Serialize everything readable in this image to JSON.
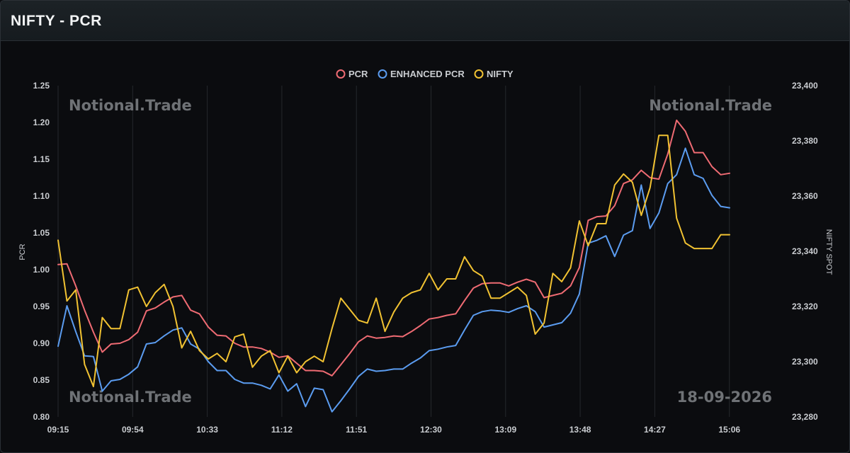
{
  "header": {
    "title": "NIFTY - PCR"
  },
  "watermarks": {
    "brand": "Notional.Trade",
    "date": "18-09-2026"
  },
  "colors": {
    "pcr": "#ef6b73",
    "enhanced_pcr": "#5b9cf0",
    "nifty": "#f1c232",
    "grid": "#25282c"
  },
  "chart_data": {
    "type": "line",
    "title": "",
    "x_tick_labels": [
      "09:15",
      "09:54",
      "10:33",
      "11:12",
      "11:51",
      "12:30",
      "13:09",
      "13:48",
      "14:27",
      "15:06"
    ],
    "ylabel": "PCR",
    "y2label": "NIFTY SPOT",
    "ylim": [
      0.8,
      1.25
    ],
    "y_ticks": [
      "0.80",
      "0.85",
      "0.90",
      "0.95",
      "1.00",
      "1.05",
      "1.10",
      "1.15",
      "1.20",
      "1.25"
    ],
    "y2lim": [
      23280,
      23400
    ],
    "y2_ticks": [
      "23,280",
      "23,300",
      "23,320",
      "23,340",
      "23,360",
      "23,380",
      "23,400"
    ],
    "grid": "vertical",
    "legend": "top-center",
    "series": [
      {
        "name": "PCR",
        "axis": "left",
        "values": [
          1.007,
          1.008,
          0.978,
          0.945,
          0.915,
          0.888,
          0.899,
          0.9,
          0.905,
          0.915,
          0.944,
          0.948,
          0.956,
          0.963,
          0.965,
          0.945,
          0.94,
          0.922,
          0.911,
          0.91,
          0.9,
          0.895,
          0.895,
          0.893,
          0.888,
          0.881,
          0.883,
          0.873,
          0.863,
          0.863,
          0.862,
          0.856,
          0.871,
          0.886,
          0.902,
          0.91,
          0.907,
          0.908,
          0.91,
          0.909,
          0.916,
          0.924,
          0.933,
          0.935,
          0.938,
          0.94,
          0.958,
          0.975,
          0.981,
          0.982,
          0.982,
          0.978,
          0.983,
          0.987,
          0.983,
          0.962,
          0.965,
          0.968,
          0.978,
          1.003,
          1.067,
          1.072,
          1.073,
          1.087,
          1.117,
          1.122,
          1.135,
          1.125,
          1.123,
          1.157,
          1.203,
          1.188,
          1.159,
          1.159,
          1.14,
          1.129,
          1.131
        ]
      },
      {
        "name": "ENHANCED PCR",
        "axis": "left",
        "values": [
          0.896,
          0.951,
          0.916,
          0.883,
          0.882,
          0.835,
          0.849,
          0.851,
          0.858,
          0.868,
          0.899,
          0.901,
          0.91,
          0.918,
          0.921,
          0.899,
          0.892,
          0.875,
          0.863,
          0.863,
          0.851,
          0.846,
          0.846,
          0.843,
          0.838,
          0.857,
          0.835,
          0.845,
          0.814,
          0.839,
          0.837,
          0.807,
          0.822,
          0.838,
          0.855,
          0.865,
          0.862,
          0.863,
          0.865,
          0.865,
          0.873,
          0.88,
          0.89,
          0.892,
          0.895,
          0.897,
          0.918,
          0.938,
          0.943,
          0.945,
          0.944,
          0.942,
          0.947,
          0.951,
          0.943,
          0.922,
          0.925,
          0.928,
          0.941,
          0.967,
          1.036,
          1.04,
          1.046,
          1.018,
          1.047,
          1.053,
          1.115,
          1.056,
          1.077,
          1.117,
          1.129,
          1.165,
          1.129,
          1.124,
          1.101,
          1.086,
          1.084
        ]
      },
      {
        "name": "NIFTY",
        "axis": "right",
        "values": [
          23344,
          23322,
          23326,
          23299,
          23291,
          23316,
          23312,
          23312,
          23326,
          23327,
          23320,
          23325,
          23328,
          23320,
          23305,
          23311,
          23304,
          23301,
          23303,
          23300,
          23309,
          23310,
          23298,
          23302,
          23304,
          23296,
          23302,
          23296,
          23300,
          23302,
          23300,
          23312,
          23323,
          23319,
          23315,
          23314,
          23323,
          23311,
          23318,
          23323,
          23325,
          23326,
          23332,
          23326,
          23330,
          23330,
          23338,
          23333,
          23331,
          23323,
          23323,
          23325,
          23327,
          23324,
          23310,
          23314,
          23332,
          23329,
          23334,
          23351,
          23342,
          23350,
          23350,
          23364,
          23368,
          23365,
          23353,
          23363,
          23382,
          23382,
          23352,
          23343,
          23341,
          23341,
          23341,
          23346,
          23346
        ]
      }
    ]
  }
}
